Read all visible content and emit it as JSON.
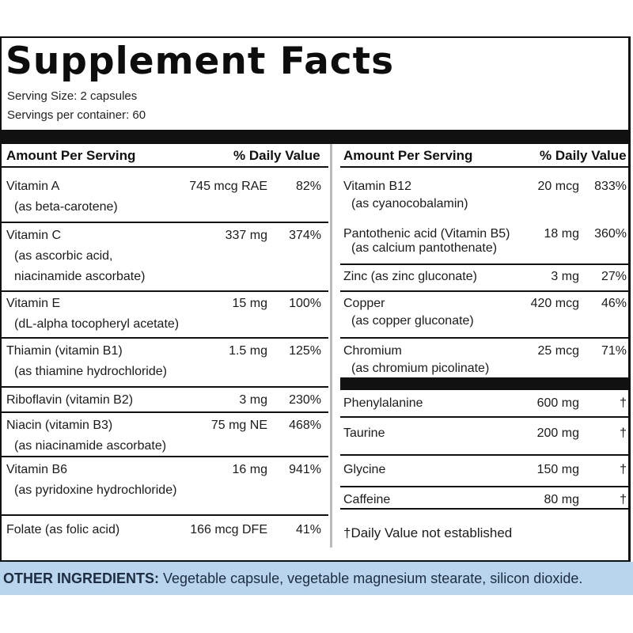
{
  "title": "Supplement Facts",
  "serving_size": "Serving Size: 2 capsules",
  "servings_per_container": "Servings per container: 60",
  "headers": {
    "amount_per_serving": "Amount Per Serving",
    "daily_value": "% Daily Value"
  },
  "left_rows": [
    {
      "name": "Vitamin A",
      "sub": "(as beta-carotene)",
      "amount": "745 mcg RAE",
      "dv": "82%"
    },
    {
      "name": "Vitamin C",
      "sub": "(as ascorbic acid,",
      "sub2": "niacinamide ascorbate)",
      "amount": "337 mg",
      "dv": "374%"
    },
    {
      "name": "Vitamin E",
      "sub": "(dL-alpha tocopheryl acetate)",
      "amount": "15 mg",
      "dv": "100%"
    },
    {
      "name": "Thiamin (vitamin B1)",
      "sub": "(as thiamine hydrochloride)",
      "amount": "1.5 mg",
      "dv": "125%"
    },
    {
      "name": "Riboflavin (vitamin B2)",
      "amount": "3 mg",
      "dv": "230%"
    },
    {
      "name": "Niacin (vitamin B3)",
      "sub": "(as niacinamide ascorbate)",
      "amount": "75 mg NE",
      "dv": "468%"
    },
    {
      "name": "Vitamin B6",
      "sub": "(as pyridoxine hydrochloride)",
      "amount": "16 mg",
      "dv": "941%"
    },
    {
      "name": "Folate (as folic acid)",
      "amount": "166 mcg DFE",
      "dv": "41%"
    }
  ],
  "right_rows": [
    {
      "name": "Vitamin B12",
      "sub": "(as cyanocobalamin)",
      "amount": "20 mcg",
      "dv": "833%"
    },
    {
      "name": "Pantothenic acid (Vitamin B5)",
      "sub": "(as calcium pantothenate)",
      "amount": "18 mg",
      "dv": "360%"
    },
    {
      "name": "Zinc (as zinc gluconate)",
      "amount": "3 mg",
      "dv": "27%"
    },
    {
      "name": "Copper",
      "sub": "(as copper gluconate)",
      "amount": "420 mcg",
      "dv": "46%"
    },
    {
      "name": "Chromium",
      "sub": "(as chromium picolinate)",
      "amount": "25 mcg",
      "dv": "71%"
    },
    {
      "name": "Phenylalanine",
      "amount": "600 mg",
      "dv": "†"
    },
    {
      "name": "Taurine",
      "amount": "200 mg",
      "dv": "†"
    },
    {
      "name": "Glycine",
      "amount": "150 mg",
      "dv": "†"
    },
    {
      "name": "Caffeine",
      "amount": "80 mg",
      "dv": "†"
    }
  ],
  "footnote": "†Daily Value not established",
  "other_ingredients": {
    "label": "OTHER INGREDIENTS:",
    "text": " Vegetable capsule, vegetable magnesium stearate, silicon dioxide."
  }
}
